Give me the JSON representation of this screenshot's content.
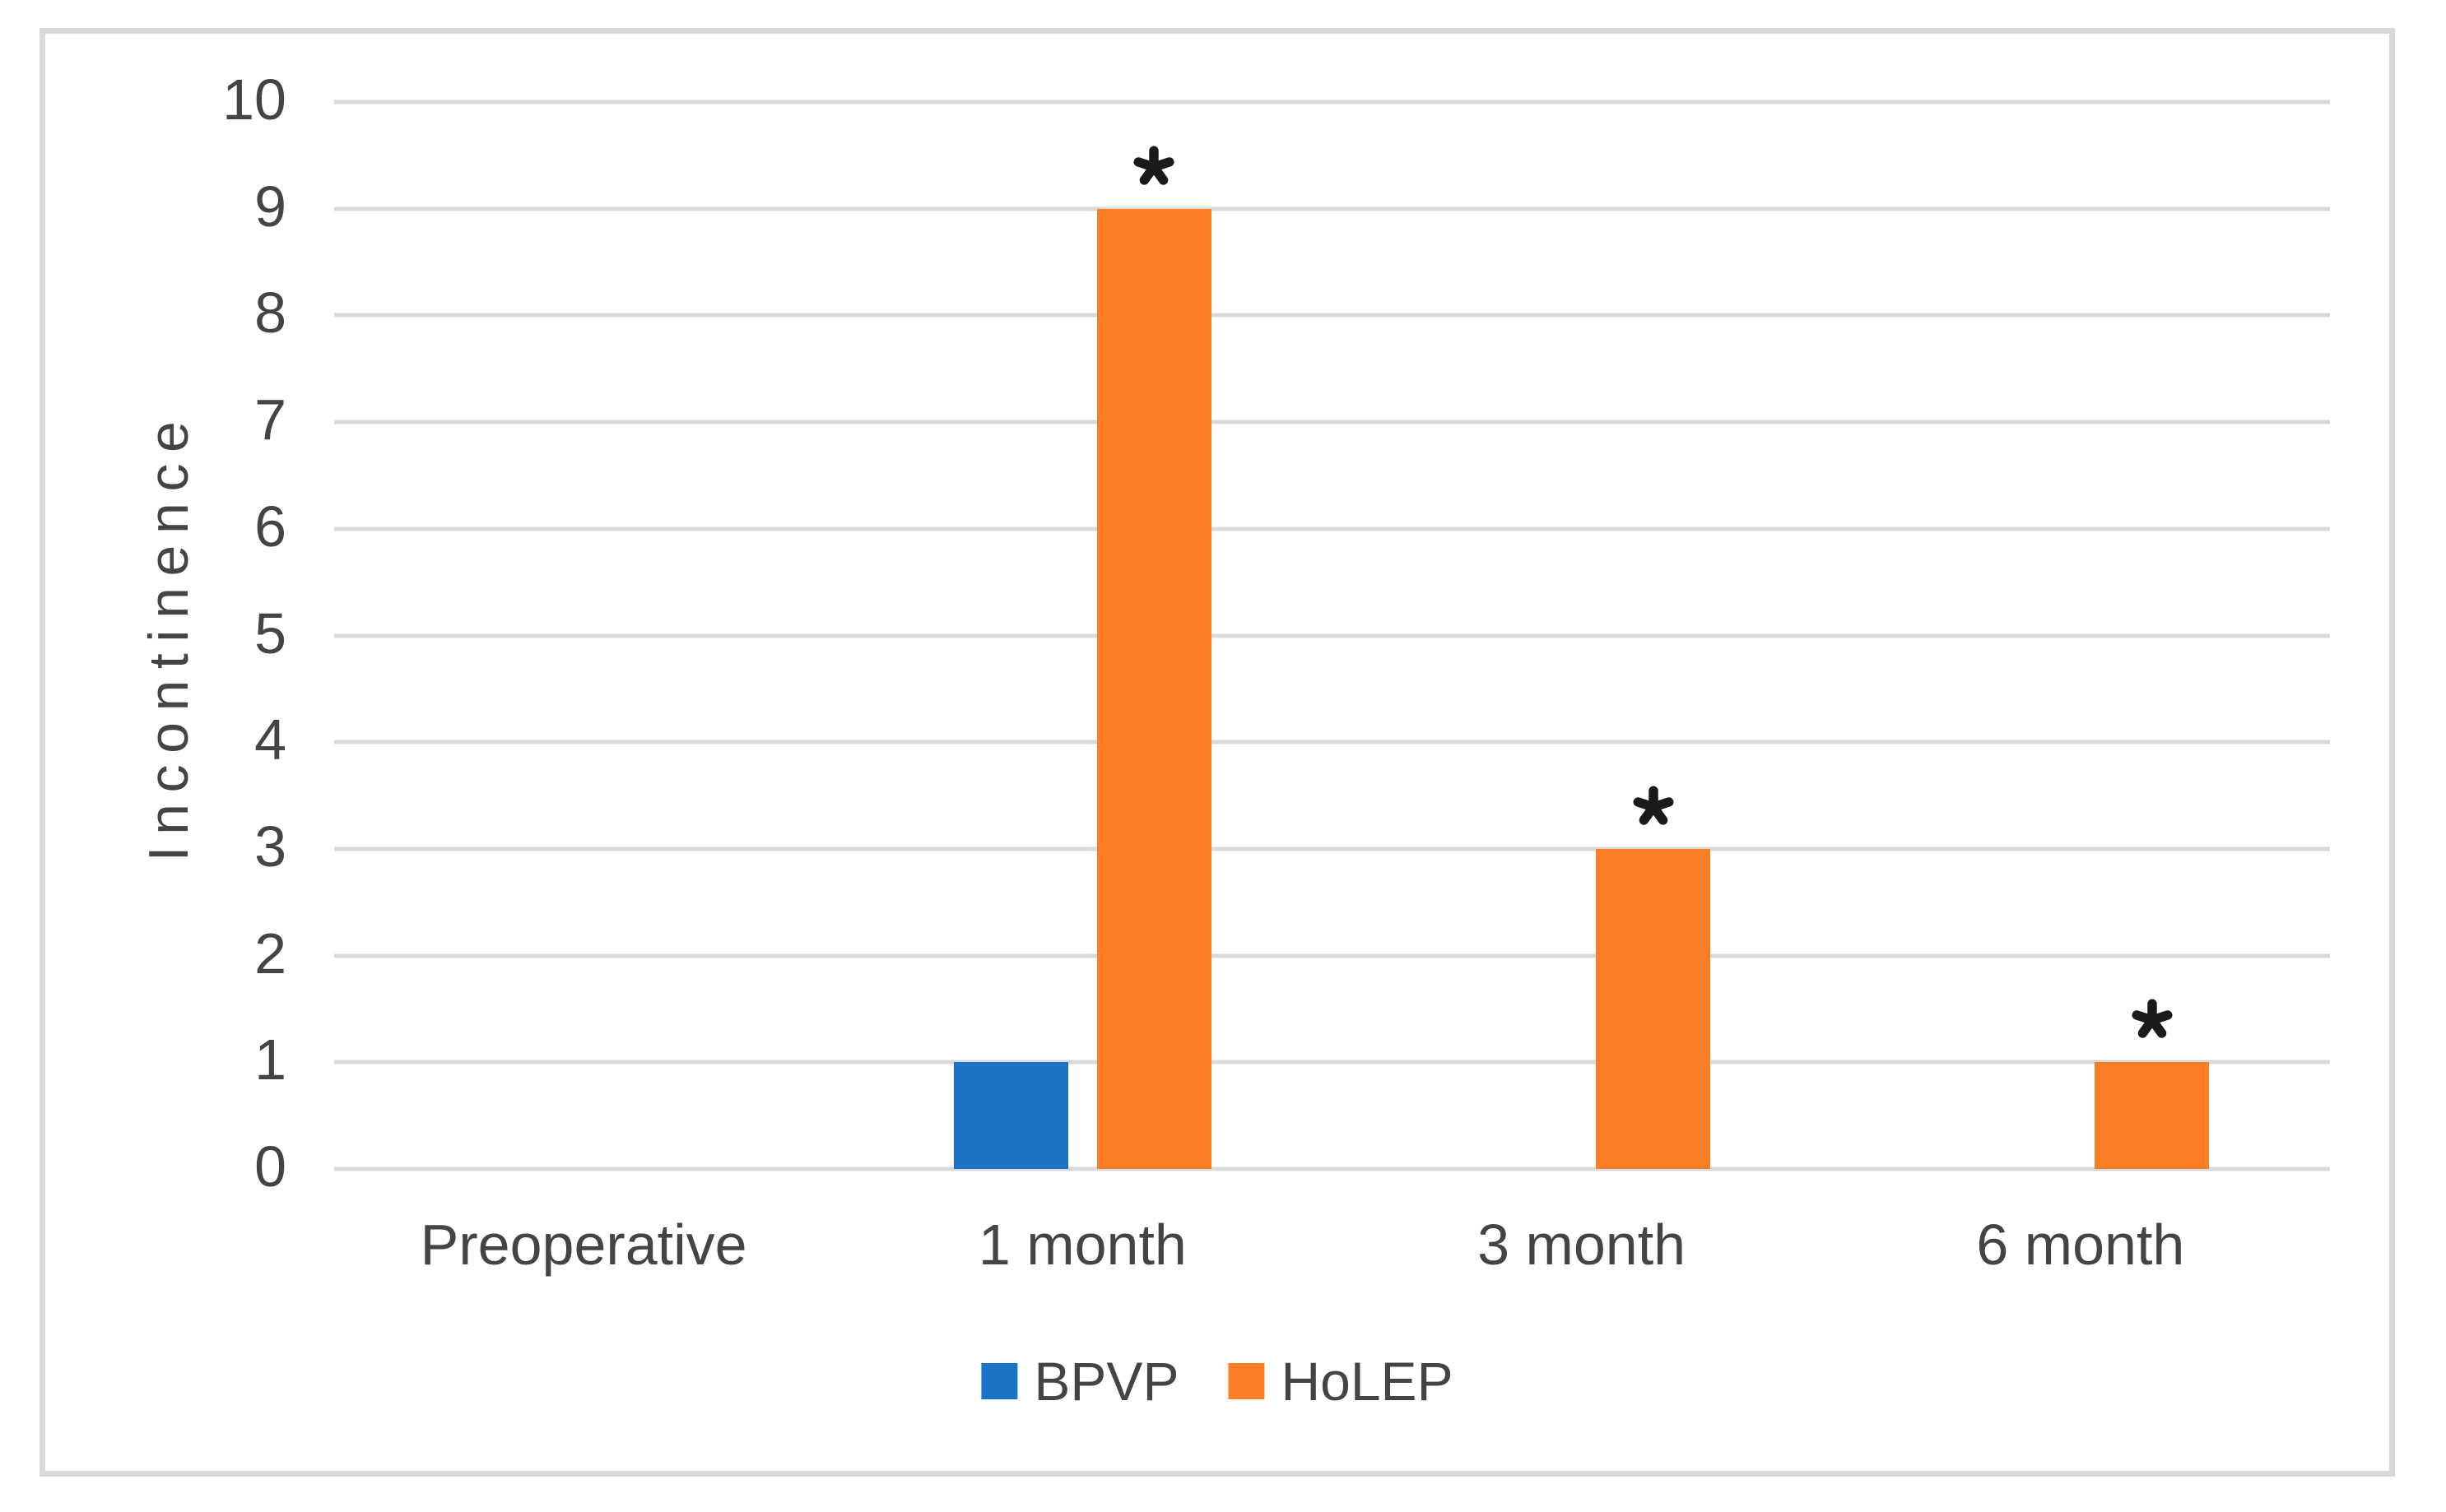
{
  "chart_data": {
    "type": "bar",
    "categories": [
      "Preoperative",
      "1 month",
      "3 month",
      "6 month"
    ],
    "series": [
      {
        "name": "BPVP",
        "color": "#1B73C6",
        "values": [
          0,
          1,
          0,
          0
        ]
      },
      {
        "name": "HoLEP",
        "color": "#FC7E27",
        "values": [
          0,
          9,
          3,
          1
        ]
      }
    ],
    "annotations": [
      {
        "series": "HoLEP",
        "category": "1 month",
        "symbol": "*"
      },
      {
        "series": "HoLEP",
        "category": "3 month",
        "symbol": "*"
      },
      {
        "series": "HoLEP",
        "category": "6 month",
        "symbol": "*"
      }
    ],
    "ylabel": "Incontinence",
    "ylim": [
      0,
      10
    ],
    "yticks": [
      0,
      1,
      2,
      3,
      4,
      5,
      6,
      7,
      8,
      9,
      10
    ],
    "grid": true,
    "legend_position": "bottom",
    "colors": {
      "gridline": "#D9D9D9",
      "frame_border": "#D9D9D9",
      "axis_text": "#444444",
      "annotation": "#1A1A1A",
      "background": "#FFFFFF"
    }
  }
}
